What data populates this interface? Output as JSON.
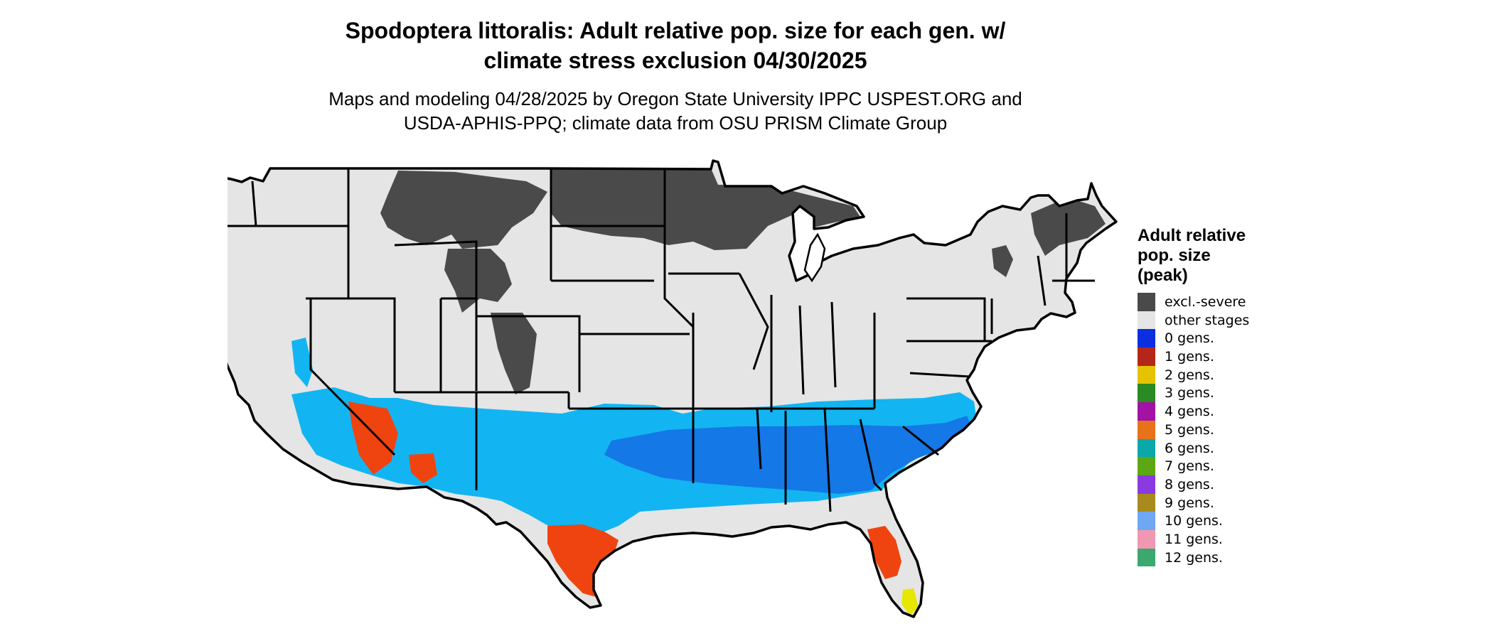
{
  "title_line1": "Spodoptera littoralis: Adult relative pop. size for each gen. w/",
  "title_line2": "climate stress exclusion 04/30/2025",
  "subtitle_line1": "Maps and modeling 04/28/2025 by Oregon State University IPPC USPEST.ORG and",
  "subtitle_line2": "USDA-APHIS-PPQ; climate data from OSU PRISM Climate Group",
  "legend": {
    "title_lines": [
      "Adult relative",
      "pop. size",
      "(peak)"
    ],
    "items": [
      {
        "label": "excl.-severe",
        "color": "#4a4a4a"
      },
      {
        "label": "other stages",
        "color": "#e5e5e5"
      },
      {
        "label": "0 gens.",
        "color": "#0b2fe0"
      },
      {
        "label": "1 gens.",
        "color": "#b5261a"
      },
      {
        "label": "2 gens.",
        "color": "#e6c300"
      },
      {
        "label": "3 gens.",
        "color": "#2b8a22"
      },
      {
        "label": "4 gens.",
        "color": "#a112a5"
      },
      {
        "label": "5 gens.",
        "color": "#e6731a"
      },
      {
        "label": "6 gens.",
        "color": "#0aa8a8"
      },
      {
        "label": "7 gens.",
        "color": "#5ca814"
      },
      {
        "label": "8 gens.",
        "color": "#8a3ae0"
      },
      {
        "label": "9 gens.",
        "color": "#a88a1e"
      },
      {
        "label": "10 gens.",
        "color": "#6fa8f2"
      },
      {
        "label": "11 gens.",
        "color": "#f297b2"
      },
      {
        "label": "12 gens.",
        "color": "#3aa86f"
      }
    ]
  },
  "map_colors": {
    "background": "#e5e5e5",
    "excluded": "#4a4a4a",
    "light_blue": "#12b5f2",
    "mid_blue": "#1478e6",
    "orange_red": "#f04410",
    "yellow": "#e6e600",
    "border": "#000000"
  }
}
